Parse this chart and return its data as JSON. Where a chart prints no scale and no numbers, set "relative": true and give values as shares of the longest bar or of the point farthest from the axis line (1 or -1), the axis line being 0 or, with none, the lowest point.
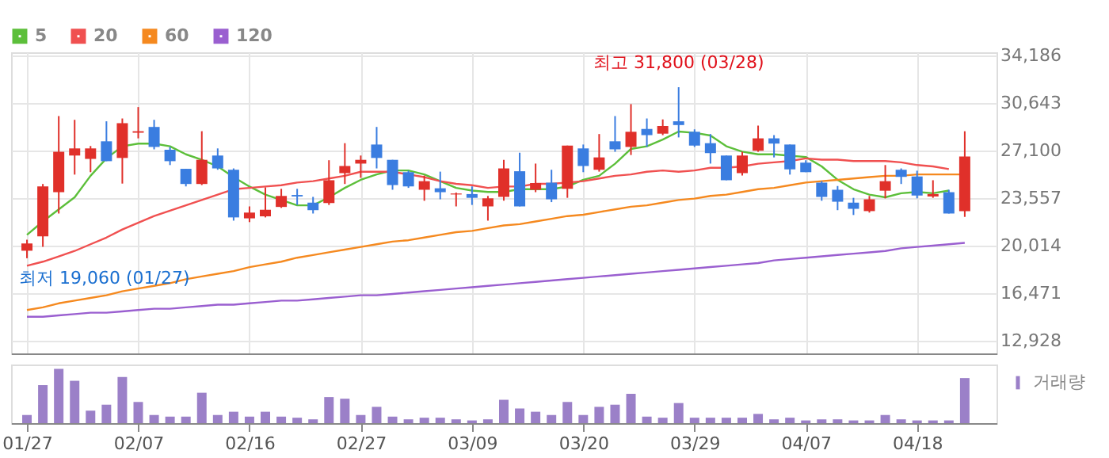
{
  "chart_data": [
    {
      "type": "candlestick",
      "categories": [
        "01/27",
        null,
        null,
        null,
        null,
        null,
        null,
        "02/07",
        null,
        null,
        null,
        null,
        null,
        null,
        "02/16",
        null,
        null,
        null,
        null,
        null,
        null,
        "02/27",
        null,
        null,
        null,
        null,
        null,
        null,
        "03/09",
        null,
        null,
        null,
        null,
        null,
        null,
        "03/20",
        null,
        null,
        null,
        null,
        null,
        null,
        "03/29",
        null,
        null,
        null,
        null,
        null,
        null,
        "04/07",
        null,
        null,
        null,
        null,
        null,
        null,
        "04/18",
        null,
        null,
        null
      ],
      "ohlc": [
        [
          19620,
          20440,
          19060,
          20160
        ],
        [
          20690,
          24590,
          19910,
          24410
        ],
        [
          23980,
          29650,
          22390,
          26990
        ],
        [
          26710,
          29370,
          25290,
          27240
        ],
        [
          26460,
          27420,
          25470,
          27240
        ],
        [
          27770,
          29260,
          26290,
          26290
        ],
        [
          26530,
          29470,
          24620,
          29120
        ],
        [
          28410,
          30320,
          27990,
          28520
        ],
        [
          28840,
          29370,
          27170,
          27350
        ],
        [
          27140,
          27350,
          26000,
          26290
        ],
        [
          25720,
          25720,
          24410,
          24590
        ],
        [
          24590,
          28520,
          24510,
          26390
        ],
        [
          26710,
          27240,
          25650,
          25750
        ],
        [
          25650,
          25750,
          21860,
          22100
        ],
        [
          22030,
          22920,
          21750,
          22460
        ],
        [
          22180,
          24340,
          22100,
          22670
        ],
        [
          22880,
          24230,
          22810,
          23700
        ],
        [
          23770,
          24230,
          23030,
          23660
        ],
        [
          23200,
          23630,
          22390,
          22640
        ],
        [
          23170,
          26360,
          23030,
          24870
        ],
        [
          25400,
          27630,
          24590,
          25930
        ],
        [
          26110,
          26710,
          25050,
          26390
        ],
        [
          27530,
          28840,
          25750,
          26530
        ],
        [
          26390,
          26390,
          24160,
          24510
        ],
        [
          25470,
          25580,
          24300,
          24410
        ],
        [
          24160,
          25220,
          23340,
          24800
        ],
        [
          24270,
          25510,
          23450,
          23980
        ],
        [
          23810,
          23950,
          22920,
          23880
        ],
        [
          23840,
          24410,
          23030,
          23560
        ],
        [
          22920,
          23700,
          21860,
          23520
        ],
        [
          23630,
          26390,
          23340,
          25750
        ],
        [
          25540,
          26920,
          22920,
          22920
        ],
        [
          24160,
          26110,
          23980,
          24660
        ],
        [
          24690,
          25650,
          23240,
          23450
        ],
        [
          24230,
          27450,
          23560,
          27450
        ],
        [
          27240,
          27530,
          25470,
          25930
        ],
        [
          25650,
          28310,
          25510,
          26570
        ],
        [
          27770,
          29650,
          26990,
          27170
        ],
        [
          27350,
          30540,
          26750,
          28480
        ],
        [
          28690,
          29470,
          27350,
          28230
        ],
        [
          28340,
          29400,
          28230,
          28910
        ],
        [
          29260,
          31800,
          28060,
          28980
        ],
        [
          28480,
          28660,
          27350,
          27450
        ],
        [
          27630,
          28310,
          26110,
          26890
        ],
        [
          26710,
          26710,
          24870,
          24870
        ],
        [
          25400,
          26990,
          25220,
          26710
        ],
        [
          27070,
          28940,
          26990,
          27990
        ],
        [
          27990,
          28230,
          26570,
          27600
        ],
        [
          27530,
          27530,
          25290,
          25680
        ],
        [
          26180,
          26360,
          25470,
          25470
        ],
        [
          24690,
          24800,
          23340,
          23630
        ],
        [
          24160,
          24440,
          22640,
          23270
        ],
        [
          23200,
          23560,
          22280,
          22740
        ],
        [
          22570,
          23700,
          22460,
          23450
        ],
        [
          24090,
          26000,
          23520,
          24800
        ],
        [
          25650,
          25750,
          24590,
          25120
        ],
        [
          25150,
          25580,
          23520,
          23730
        ],
        [
          23660,
          24870,
          23560,
          23840
        ],
        [
          23980,
          24160,
          22390,
          22390
        ],
        [
          22570,
          28520,
          22140,
          26640
        ]
      ],
      "series": [
        {
          "name": "5",
          "type": "line",
          "color": "#5cbf3a",
          "values": [
            20800,
            21800,
            22700,
            23600,
            25200,
            26500,
            27400,
            27600,
            27600,
            27400,
            26800,
            26400,
            25900,
            25100,
            24400,
            23800,
            23400,
            23000,
            23000,
            23600,
            24300,
            24900,
            25300,
            25600,
            25600,
            25300,
            24800,
            24300,
            24100,
            24000,
            24000,
            24200,
            24200,
            24200,
            24400,
            24900,
            25200,
            26100,
            27200,
            27400,
            27900,
            28500,
            28400,
            28200,
            27400,
            27000,
            26800,
            26800,
            26700,
            26600,
            25900,
            24900,
            24200,
            23800,
            23600,
            23900,
            24000,
            23900,
            24100,
            null
          ]
        },
        {
          "name": "20",
          "type": "line",
          "color": "#f05050",
          "values": [
            18500,
            18800,
            19200,
            19600,
            20100,
            20600,
            21200,
            21700,
            22200,
            22600,
            23000,
            23400,
            23800,
            24200,
            24300,
            24400,
            24500,
            24700,
            24800,
            25000,
            25200,
            25500,
            25500,
            25500,
            25300,
            25100,
            24800,
            24600,
            24500,
            24300,
            24400,
            24400,
            24600,
            24600,
            24700,
            24800,
            25000,
            25200,
            25300,
            25500,
            25600,
            25500,
            25600,
            25800,
            25800,
            25900,
            26100,
            26200,
            26300,
            26500,
            26400,
            26400,
            26300,
            26300,
            26300,
            26200,
            26000,
            25900,
            25700,
            null
          ]
        },
        {
          "name": "60",
          "type": "line",
          "color": "#f5891f",
          "values": [
            15200,
            15400,
            15700,
            15900,
            16100,
            16300,
            16600,
            16800,
            17000,
            17200,
            17500,
            17700,
            17900,
            18100,
            18400,
            18600,
            18800,
            19100,
            19300,
            19500,
            19700,
            19900,
            20100,
            20300,
            20400,
            20600,
            20800,
            21000,
            21100,
            21300,
            21500,
            21600,
            21800,
            22000,
            22200,
            22300,
            22500,
            22700,
            22900,
            23000,
            23200,
            23400,
            23500,
            23700,
            23800,
            24000,
            24200,
            24300,
            24500,
            24700,
            24800,
            24900,
            25000,
            25100,
            25200,
            25200,
            25300,
            25300,
            25300,
            25300
          ]
        },
        {
          "name": "120",
          "type": "line",
          "color": "#9a5fd0",
          "values": [
            14700,
            14700,
            14800,
            14900,
            15000,
            15000,
            15100,
            15200,
            15300,
            15300,
            15400,
            15500,
            15600,
            15600,
            15700,
            15800,
            15900,
            15900,
            16000,
            16100,
            16200,
            16300,
            16300,
            16400,
            16500,
            16600,
            16700,
            16800,
            16900,
            17000,
            17100,
            17200,
            17300,
            17400,
            17500,
            17600,
            17700,
            17800,
            17900,
            18000,
            18100,
            18200,
            18300,
            18400,
            18500,
            18600,
            18700,
            18900,
            19000,
            19100,
            19200,
            19300,
            19400,
            19500,
            19600,
            19800,
            19900,
            20000,
            20100,
            20200
          ]
        }
      ],
      "annotations": [
        {
          "text": "최고 31,800 (03/28)",
          "y": 31800
        },
        {
          "text": "최저 19,060 (01/27)",
          "x": "01/27",
          "y": 19060
        }
      ],
      "ylim": [
        11970,
        34400
      ],
      "yticks": [
        {
          "value": 12928,
          "label": "12,928"
        },
        {
          "value": 16471,
          "label": "16,471"
        },
        {
          "value": 20014,
          "label": "20,014"
        },
        {
          "value": 23557,
          "label": "23,557"
        },
        {
          "value": 27100,
          "label": "27,100"
        },
        {
          "value": 30643,
          "label": "30,643"
        },
        {
          "value": 34186,
          "label": "34,186"
        }
      ],
      "grid": true,
      "legend": "top left",
      "tick_labels": "y"
    },
    {
      "type": "bar",
      "relative": true,
      "categories": [
        "01/27",
        null,
        null,
        null,
        null,
        null,
        null,
        "02/07",
        null,
        null,
        null,
        null,
        null,
        null,
        "02/16",
        null,
        null,
        null,
        null,
        null,
        null,
        "02/27",
        null,
        null,
        null,
        null,
        null,
        null,
        "03/09",
        null,
        null,
        null,
        null,
        null,
        null,
        "03/20",
        null,
        null,
        null,
        null,
        null,
        null,
        "03/29",
        null,
        null,
        null,
        null,
        null,
        null,
        "04/07",
        null,
        null,
        null,
        null,
        null,
        null,
        "04/18",
        null,
        null,
        null
      ],
      "series": [
        {
          "name": "거래량",
          "color": "#9b80c8",
          "values": [
            0.15,
            0.7,
            1,
            0.78,
            0.23,
            0.34,
            0.85,
            0.39,
            0.15,
            0.12,
            0.12,
            0.56,
            0.15,
            0.21,
            0.12,
            0.21,
            0.12,
            0.1,
            0.07,
            0.48,
            0.45,
            0.15,
            0.3,
            0.12,
            0.07,
            0.1,
            0.1,
            0.07,
            0.05,
            0.07,
            0.43,
            0.27,
            0.21,
            0.15,
            0.39,
            0.15,
            0.3,
            0.34,
            0.54,
            0.12,
            0.1,
            0.37,
            0.1,
            0.1,
            0.1,
            0.1,
            0.17,
            0.07,
            0.1,
            0.05,
            0.07,
            0.07,
            0.05,
            0.05,
            0.15,
            0.07,
            0.05,
            0.05,
            0.05,
            0.83
          ]
        }
      ],
      "legend": "top right",
      "tick_labels": "x",
      "grid": false
    }
  ]
}
